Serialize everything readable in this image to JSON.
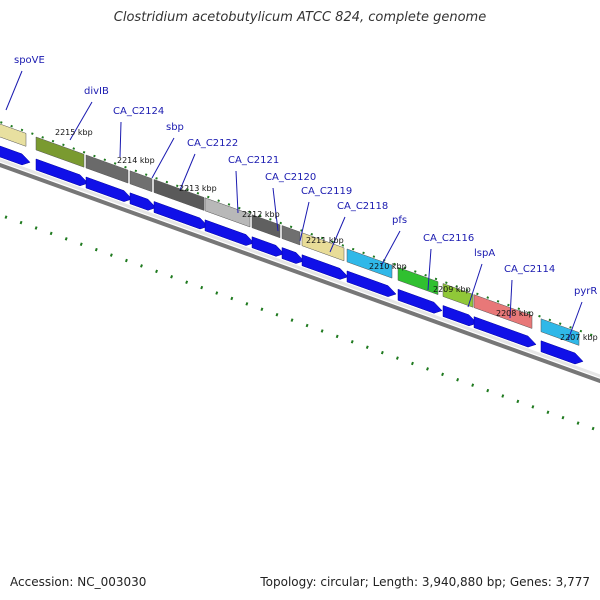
{
  "title": "Clostridium acetobutylicum ATCC 824, complete genome",
  "accession": "Accession: NC_003030",
  "topology": "Topology: circular; Length: 3,940,880 bp; Genes: 3,777",
  "colors": {
    "cds_arrow": "#1010e8",
    "backbone": "#777777",
    "tick": "#1f7a1f",
    "label": "#1a1ab0"
  },
  "kbp_ticks": [
    "2215 kbp",
    "2214 kbp",
    "2213 kbp",
    "2212 kbp",
    "2211 kbp",
    "2210 kbp",
    "2209 kbp",
    "2208 kbp",
    "2207 kbp"
  ],
  "genes": [
    {
      "label": "spoVE",
      "color": "#e8e0a0"
    },
    {
      "label": "divIB",
      "color": "#7a9a30"
    },
    {
      "label": "CA_C2124",
      "color": "#6a6a6a"
    },
    {
      "label": "sbp",
      "color": "#707070"
    },
    {
      "label": "CA_C2122",
      "color": "#5a5a5a"
    },
    {
      "label": "CA_C2121",
      "color": "#b8b8b8"
    },
    {
      "label": "CA_C2120",
      "color": "#606060"
    },
    {
      "label": "CA_C2119",
      "color": "#707070"
    },
    {
      "label": "CA_C2118",
      "color": "#e8dc98"
    },
    {
      "label": "pfs",
      "color": "#30b8e8"
    },
    {
      "label": "CA_C2116",
      "color": "#30c030"
    },
    {
      "label": "lspA",
      "color": "#90c838"
    },
    {
      "label": "CA_C2114",
      "color": "#e87878"
    },
    {
      "label": "pyrR",
      "color": "#30b8e8"
    }
  ]
}
